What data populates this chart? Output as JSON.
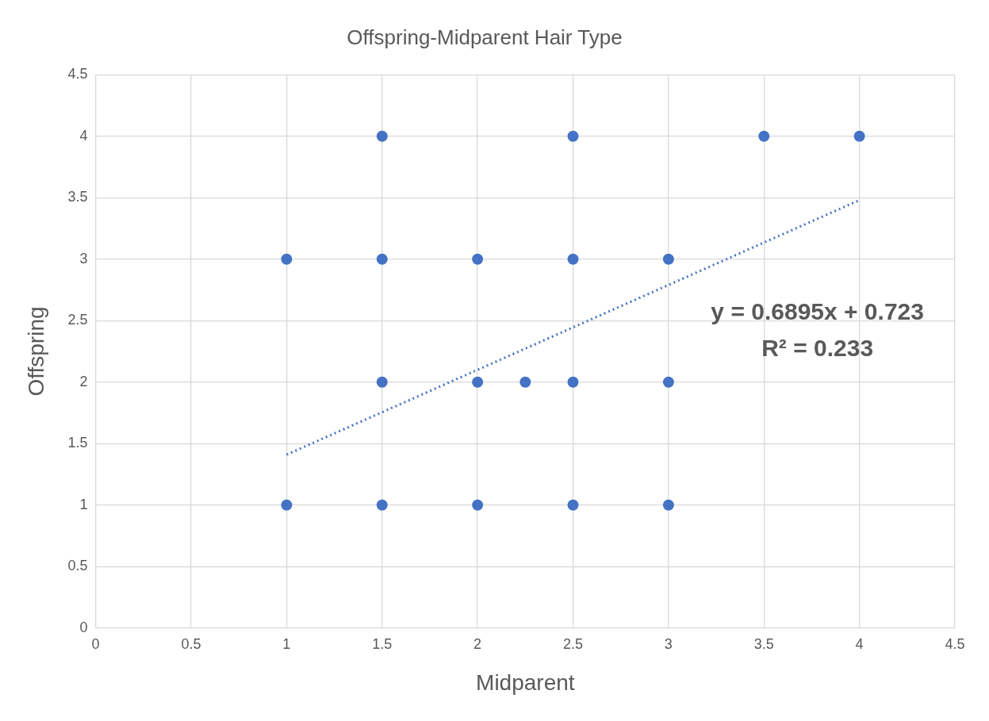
{
  "chart_data": {
    "type": "scatter",
    "title": "Offspring-Midparent Hair Type",
    "xlabel": "Midparent",
    "ylabel": "Offspring",
    "xlim": [
      0,
      4.5
    ],
    "ylim": [
      0,
      4.5
    ],
    "xticks": [
      0,
      0.5,
      1,
      1.5,
      2,
      2.5,
      3,
      3.5,
      4,
      4.5
    ],
    "yticks": [
      0,
      0.5,
      1,
      1.5,
      2,
      2.5,
      3,
      3.5,
      4,
      4.5
    ],
    "grid": true,
    "marker": "circle",
    "series": [
      {
        "color": "#4472c4",
        "x": [
          1.5,
          2.5,
          3.5,
          4,
          1,
          1.5,
          2,
          2.5,
          3,
          1.5,
          2,
          2.25,
          2.5,
          3,
          1,
          1.5,
          2,
          2.5,
          3
        ],
        "values": [
          4,
          4,
          4,
          4,
          3,
          3,
          3,
          3,
          3,
          2,
          2,
          2,
          2,
          2,
          1,
          1,
          1,
          1,
          1
        ]
      },
      {
        "type": "line",
        "line_style": "dotted",
        "marker": "none",
        "color": "#4472c4",
        "x": [
          1,
          4
        ],
        "values": [
          1.41,
          3.48
        ]
      }
    ],
    "annotations": [
      "y = 0.6895x + 0.723",
      "R² = 0.233"
    ]
  }
}
